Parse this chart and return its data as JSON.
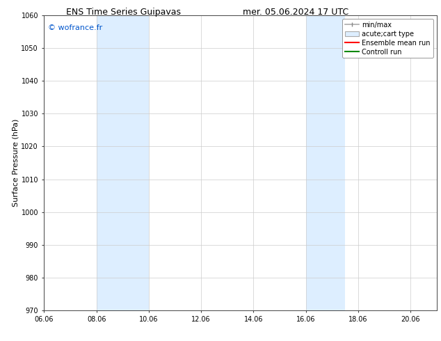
{
  "title": "ENS Time Series Guipavas",
  "title2": "mer. 05.06.2024 17 UTC",
  "ylabel": "Surface Pressure (hPa)",
  "ylim": [
    970,
    1060
  ],
  "yticks": [
    970,
    980,
    990,
    1000,
    1010,
    1020,
    1030,
    1040,
    1050,
    1060
  ],
  "xlim": [
    0.0,
    15.0
  ],
  "xtick_labels": [
    "06.06",
    "08.06",
    "10.06",
    "12.06",
    "14.06",
    "16.06",
    "18.06",
    "20.06"
  ],
  "xtick_positions": [
    0,
    2,
    4,
    6,
    8,
    10,
    12,
    14
  ],
  "shaded_regions": [
    {
      "xmin": 2.0,
      "xmax": 4.0
    },
    {
      "xmin": 10.0,
      "xmax": 11.5
    }
  ],
  "shaded_color": "#ddeeff",
  "watermark": "© wofrance.fr",
  "watermark_color": "#0055cc",
  "legend_labels": [
    "min/max",
    "acute;cart type",
    "Ensemble mean run",
    "Controll run"
  ],
  "legend_colors": [
    "#aaaaaa",
    "#cccccc",
    "#ff0000",
    "#008800"
  ],
  "bg_color": "#ffffff",
  "grid_color": "#cccccc",
  "title_fontsize": 9,
  "tick_fontsize": 7,
  "ylabel_fontsize": 8,
  "watermark_fontsize": 8,
  "legend_fontsize": 7
}
